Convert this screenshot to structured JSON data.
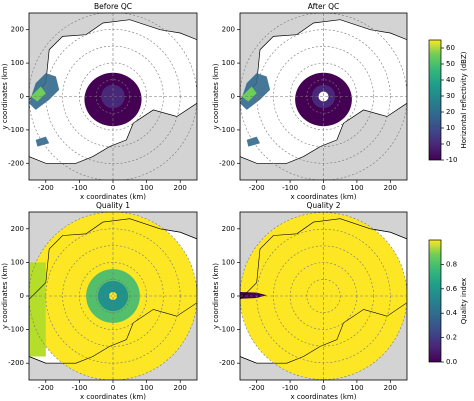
{
  "chart_data": [
    {
      "type": "map",
      "title": "Before QC",
      "xlabel": "x coordinates (km)",
      "ylabel": "y coordinates (km)",
      "xlim": [
        -250,
        250
      ],
      "ylim": [
        -250,
        250
      ],
      "xticks": [
        -200,
        -100,
        0,
        100,
        200
      ],
      "yticks": [
        -200,
        -100,
        0,
        100,
        200
      ]
    },
    {
      "type": "map",
      "title": "After QC",
      "xlabel": "x coordinates (km)",
      "ylabel": "y coordinates (km)",
      "xlim": [
        -250,
        250
      ],
      "ylim": [
        -250,
        250
      ],
      "xticks": [
        -200,
        -100,
        0,
        100,
        200
      ],
      "yticks": [
        -200,
        -100,
        0,
        100,
        200
      ]
    },
    {
      "type": "map",
      "title": "Quality 1",
      "xlabel": "x coordinates (km)",
      "ylabel": "y coordinates (km)",
      "xlim": [
        -250,
        250
      ],
      "ylim": [
        -250,
        250
      ],
      "xticks": [
        -200,
        -100,
        0,
        100,
        200
      ],
      "yticks": [
        -200,
        -100,
        0,
        100,
        200
      ]
    },
    {
      "type": "map",
      "title": "Quality 2",
      "xlabel": "x coordinates (km)",
      "ylabel": "y coordinates (km)",
      "xlim": [
        -250,
        250
      ],
      "ylim": [
        -250,
        250
      ],
      "xticks": [
        -200,
        -100,
        0,
        100,
        200
      ],
      "yticks": [
        -200,
        -100,
        0,
        100,
        200
      ]
    },
    {
      "type": "colorbar",
      "label": "Horizontal reflectivity (dBZ)",
      "colormap": "viridis",
      "ylim": [
        -10,
        65
      ],
      "yticks": [
        -10,
        0,
        10,
        20,
        30,
        40,
        50,
        60
      ]
    },
    {
      "type": "colorbar",
      "label": "Quality index",
      "colormap": "viridis",
      "ylim": [
        0,
        1
      ],
      "yticks": [
        {
          "value": 0,
          "label": "0.0"
        },
        0.2,
        0.4,
        0.6,
        0.8
      ]
    }
  ]
}
